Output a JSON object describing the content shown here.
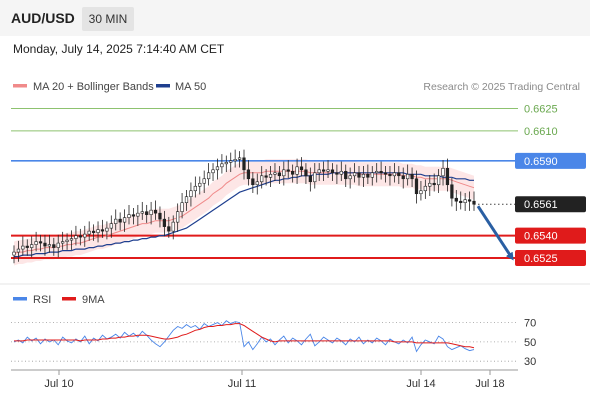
{
  "header": {
    "pair": "AUD/USD",
    "timeframe": "30 MIN"
  },
  "timestamp": "Monday, July 14, 2025 7:14:40 AM CET",
  "source": "Research © 2025 Trading Central",
  "colors": {
    "bollinger": "#f08a8a",
    "bollinger_fill": "#fde6e6",
    "ma50": "#1f3f8f",
    "level_green": "#8dc26f",
    "level_blue": "#4a86e8",
    "level_red": "#e01b1b",
    "up_candle": "#ffffff",
    "down_candle": "#222222",
    "arrow": "#2a5fa3",
    "rsi": "#4a86e8",
    "rsi_ma": "#e01b1b"
  },
  "chart_data": [
    {
      "type": "line",
      "subtype": "candlestick",
      "legend": [
        "MA 20 + Bollinger Bands",
        "MA 50"
      ],
      "ylim": [
        0.6513,
        0.6632
      ],
      "levels": [
        {
          "value": 0.6625,
          "label": "0.6625",
          "role": "resistance"
        },
        {
          "value": 0.661,
          "label": "0.6610",
          "role": "resistance"
        },
        {
          "value": 0.659,
          "label": "0.6590",
          "role": "pivot"
        },
        {
          "value": 0.6561,
          "label": "0.6561",
          "role": "last"
        },
        {
          "value": 0.654,
          "label": "0.6540",
          "role": "support"
        },
        {
          "value": 0.6525,
          "label": "0.6525",
          "role": "support"
        }
      ],
      "xticks": [
        "Jul 10",
        "Jul 11",
        "Jul 14",
        "Jul 18"
      ],
      "x_index": [
        0,
        1,
        2,
        3,
        4,
        5,
        6,
        7,
        8,
        9,
        10,
        11,
        12,
        13,
        14,
        15,
        16,
        17,
        18,
        19,
        20,
        21,
        22,
        23,
        24,
        25,
        26,
        27,
        28,
        29,
        30,
        31,
        32,
        33,
        34,
        35,
        36,
        37,
        38,
        39,
        40,
        41,
        42,
        43,
        44,
        45,
        46,
        47,
        48,
        49,
        50,
        51,
        52,
        53,
        54,
        55,
        56,
        57,
        58,
        59,
        60,
        61,
        62,
        63,
        64,
        65,
        66,
        67,
        68,
        69,
        70,
        71,
        72,
        73,
        74,
        75,
        76,
        77,
        78,
        79,
        80,
        81,
        82,
        83,
        84,
        85,
        86,
        87,
        88,
        89,
        90,
        91,
        92,
        93,
        94,
        95,
        96,
        97,
        98,
        99,
        100,
        101,
        102,
        103,
        104
      ],
      "close": [
        0.6529,
        0.6531,
        0.6533,
        0.6532,
        0.6534,
        0.6536,
        0.6535,
        0.6533,
        0.6534,
        0.6532,
        0.6535,
        0.6536,
        0.6537,
        0.6538,
        0.654,
        0.6539,
        0.6541,
        0.6543,
        0.6542,
        0.6544,
        0.6543,
        0.6545,
        0.6548,
        0.6551,
        0.6549,
        0.6552,
        0.6554,
        0.6553,
        0.6555,
        0.6556,
        0.6554,
        0.6557,
        0.6555,
        0.6551,
        0.6546,
        0.6543,
        0.6549,
        0.6556,
        0.6562,
        0.6566,
        0.657,
        0.6573,
        0.6575,
        0.6578,
        0.6582,
        0.6584,
        0.6586,
        0.6588,
        0.6589,
        0.659,
        0.6591,
        0.6592,
        0.6584,
        0.6578,
        0.6574,
        0.6576,
        0.658,
        0.6579,
        0.6581,
        0.6582,
        0.658,
        0.6584,
        0.6583,
        0.6581,
        0.6586,
        0.6584,
        0.658,
        0.6576,
        0.6582,
        0.6584,
        0.6583,
        0.6584,
        0.6582,
        0.6581,
        0.6583,
        0.6578,
        0.658,
        0.6582,
        0.6579,
        0.6581,
        0.6579,
        0.6582,
        0.6583,
        0.6582,
        0.6581,
        0.658,
        0.6582,
        0.658,
        0.6578,
        0.6581,
        0.6578,
        0.6568,
        0.657,
        0.6573,
        0.6575,
        0.6574,
        0.658,
        0.6585,
        0.6574,
        0.6565,
        0.6563,
        0.6562,
        0.6564,
        0.6563,
        0.6561
      ],
      "ma20": [
        0.6528,
        0.6529,
        0.6529,
        0.653,
        0.653,
        0.6531,
        0.6531,
        0.6532,
        0.6532,
        0.6532,
        0.6533,
        0.6533,
        0.6534,
        0.6534,
        0.6535,
        0.6535,
        0.6536,
        0.6537,
        0.6538,
        0.6539,
        0.6539,
        0.654,
        0.6541,
        0.6542,
        0.6543,
        0.6544,
        0.6545,
        0.6546,
        0.6547,
        0.6548,
        0.6548,
        0.6549,
        0.655,
        0.655,
        0.655,
        0.655,
        0.6551,
        0.6552,
        0.6553,
        0.6555,
        0.6557,
        0.6559,
        0.6561,
        0.6563,
        0.6565,
        0.6568,
        0.657,
        0.6572,
        0.6575,
        0.6577,
        0.6579,
        0.6581,
        0.6582,
        0.6582,
        0.6582,
        0.6582,
        0.6582,
        0.6583,
        0.6583,
        0.6583,
        0.6583,
        0.6583,
        0.6583,
        0.6583,
        0.6583,
        0.6583,
        0.6583,
        0.6582,
        0.6582,
        0.6582,
        0.6582,
        0.6582,
        0.6582,
        0.6582,
        0.6582,
        0.6582,
        0.6582,
        0.6582,
        0.6581,
        0.6581,
        0.6581,
        0.6581,
        0.6581,
        0.6581,
        0.6581,
        0.6581,
        0.6581,
        0.6581,
        0.658,
        0.658,
        0.658,
        0.6579,
        0.6579,
        0.6578,
        0.6578,
        0.6578,
        0.6578,
        0.6578,
        0.6578,
        0.6577,
        0.6576,
        0.6575,
        0.6574,
        0.6573,
        0.6572
      ],
      "ma50": [
        0.6526,
        0.6526,
        0.6527,
        0.6527,
        0.6527,
        0.6528,
        0.6528,
        0.6528,
        0.6529,
        0.6529,
        0.6529,
        0.653,
        0.653,
        0.653,
        0.6531,
        0.6531,
        0.6531,
        0.6532,
        0.6532,
        0.6533,
        0.6533,
        0.6534,
        0.6534,
        0.6535,
        0.6535,
        0.6536,
        0.6536,
        0.6537,
        0.6537,
        0.6538,
        0.6538,
        0.6539,
        0.6539,
        0.654,
        0.654,
        0.6541,
        0.6542,
        0.6543,
        0.6544,
        0.6545,
        0.6547,
        0.6549,
        0.6551,
        0.6553,
        0.6555,
        0.6557,
        0.6559,
        0.6561,
        0.6563,
        0.6565,
        0.6567,
        0.6569,
        0.657,
        0.6571,
        0.6572,
        0.6573,
        0.6574,
        0.6575,
        0.6576,
        0.6577,
        0.6577,
        0.6578,
        0.6578,
        0.6579,
        0.6579,
        0.658,
        0.658,
        0.658,
        0.6581,
        0.6581,
        0.6581,
        0.6581,
        0.6582,
        0.6582,
        0.6582,
        0.6582,
        0.6582,
        0.6582,
        0.6582,
        0.6582,
        0.6582,
        0.6582,
        0.6582,
        0.6582,
        0.6582,
        0.6582,
        0.6582,
        0.6582,
        0.6582,
        0.6581,
        0.6581,
        0.6581,
        0.6581,
        0.658,
        0.658,
        0.658,
        0.658,
        0.6579,
        0.6579,
        0.6579,
        0.6578,
        0.6578,
        0.6578,
        0.6577,
        0.6577
      ],
      "forecast": {
        "from_value": 0.6561,
        "to_value": 0.6525,
        "direction": "down"
      }
    },
    {
      "type": "line",
      "legend": [
        "RSI",
        "9MA"
      ],
      "ylim": [
        25,
        80
      ],
      "yticks": [
        70,
        50,
        30
      ],
      "rsi": [
        50,
        52,
        49,
        55,
        51,
        54,
        48,
        53,
        50,
        52,
        47,
        55,
        51,
        49,
        53,
        50,
        56,
        48,
        54,
        51,
        57,
        53,
        55,
        58,
        54,
        60,
        56,
        59,
        55,
        61,
        57,
        52,
        48,
        45,
        50,
        56,
        62,
        66,
        64,
        68,
        65,
        67,
        63,
        69,
        66,
        68,
        70,
        67,
        72,
        69,
        71,
        70,
        45,
        50,
        42,
        48,
        55,
        50,
        53,
        47,
        52,
        56,
        49,
        54,
        51,
        47,
        53,
        58,
        46,
        50,
        55,
        52,
        49,
        54,
        51,
        47,
        53,
        50,
        55,
        48,
        52,
        49,
        54,
        51,
        47,
        53,
        50,
        48,
        52,
        49,
        55,
        40,
        47,
        52,
        50,
        48,
        56,
        53,
        45,
        42,
        44,
        46,
        43,
        41,
        42
      ],
      "rsi_ma": [
        51,
        51,
        51,
        52,
        52,
        52,
        52,
        52,
        52,
        52,
        52,
        52,
        52,
        52,
        52,
        51,
        52,
        52,
        52,
        52,
        53,
        53,
        54,
        54,
        55,
        55,
        56,
        56,
        57,
        57,
        57,
        56,
        55,
        54,
        53,
        53,
        54,
        55,
        57,
        58,
        60,
        62,
        63,
        65,
        66,
        66,
        67,
        67,
        68,
        68,
        69,
        69,
        67,
        64,
        61,
        58,
        55,
        53,
        51,
        50,
        51,
        51,
        51,
        51,
        51,
        51,
        51,
        51,
        51,
        51,
        51,
        51,
        51,
        51,
        51,
        51,
        51,
        51,
        51,
        51,
        51,
        51,
        51,
        51,
        51,
        51,
        50,
        50,
        50,
        50,
        50,
        49,
        49,
        49,
        49,
        49,
        49,
        49,
        49,
        48,
        47,
        46,
        45,
        45,
        44
      ]
    }
  ]
}
